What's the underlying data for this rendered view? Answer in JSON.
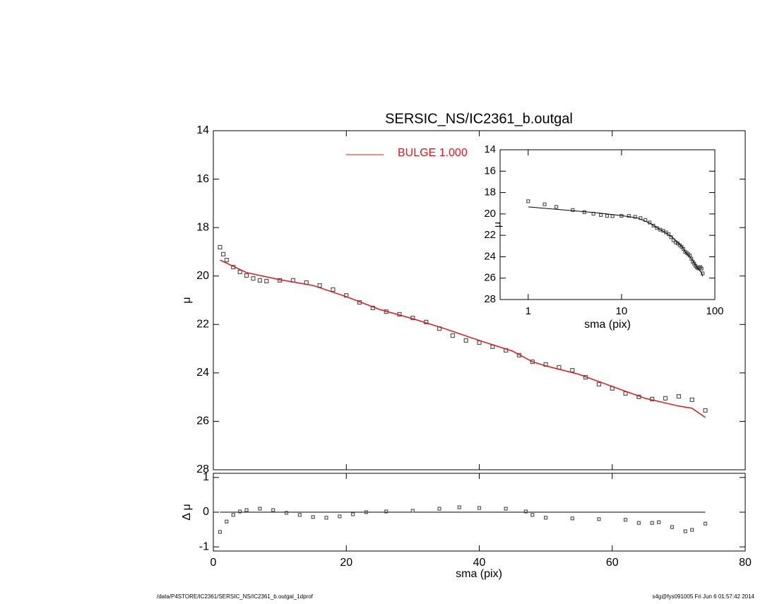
{
  "footer": {
    "left": "/data/P4STORE/IC2361/SERSIC_NS/IC2361_b.outgal_1dprof",
    "right": "s4g@fys091005  Fri Jun  6 01:57:42 2014"
  },
  "chart_data": [
    {
      "type": "scatter",
      "title": "SERSIC_NS/IC2361_b.outgal",
      "ylabel": "μ",
      "xlim": [
        0,
        80
      ],
      "ylim": [
        28,
        14
      ],
      "xticks": [
        0,
        20,
        40,
        60,
        80
      ],
      "yticks": [
        14,
        16,
        18,
        20,
        22,
        24,
        26,
        28
      ],
      "legend": "top",
      "series": [
        {
          "type": "scatter",
          "color": "#555555",
          "x": [
            1,
            1.5,
            2,
            3,
            4,
            5,
            6,
            7,
            8,
            10,
            12,
            14,
            16,
            18,
            20,
            22,
            24,
            26,
            28,
            30,
            32,
            34,
            36,
            38,
            40,
            42,
            44,
            46,
            48,
            50,
            52,
            54,
            56,
            58,
            60,
            62,
            64,
            66,
            68,
            70,
            72,
            74
          ],
          "values": [
            18.81,
            19.1,
            19.34,
            19.63,
            19.83,
            19.98,
            20.1,
            20.18,
            20.21,
            20.18,
            20.18,
            20.27,
            20.39,
            20.56,
            20.8,
            21.09,
            21.32,
            21.47,
            21.58,
            21.73,
            21.9,
            22.17,
            22.46,
            22.66,
            22.75,
            22.92,
            23.07,
            23.27,
            23.54,
            23.65,
            23.77,
            23.89,
            24.18,
            24.47,
            24.64,
            24.85,
            24.99,
            25.08,
            25.05,
            24.97,
            25.11,
            25.55
          ]
        },
        {
          "type": "line",
          "name": "BULGE  1.000",
          "color": "#e8141a",
          "x": [
            1,
            5,
            10,
            15,
            20,
            25,
            30,
            35,
            40,
            45,
            48,
            50,
            55,
            60,
            65,
            70,
            72,
            74
          ],
          "values": [
            19.34,
            19.86,
            20.15,
            20.39,
            20.85,
            21.38,
            21.76,
            22.19,
            22.66,
            23.1,
            23.54,
            23.71,
            24.06,
            24.56,
            25.05,
            25.37,
            25.46,
            25.84
          ]
        }
      ]
    },
    {
      "type": "scatter",
      "xlabel": "sma (pix)",
      "ylabel": "Δ μ",
      "xlim": [
        0,
        80
      ],
      "ylim": [
        -1.12,
        1.12
      ],
      "xticks": [
        0,
        20,
        40,
        60,
        80
      ],
      "yticks": [
        -1,
        0,
        1
      ],
      "hline": 0,
      "color": "#555555",
      "x": [
        1,
        2,
        3,
        4,
        5,
        7,
        9,
        11,
        13,
        15,
        17,
        19,
        21,
        23,
        26,
        30,
        34,
        37,
        40,
        44,
        47,
        48,
        50,
        54,
        58,
        62,
        64,
        66,
        67,
        69,
        71,
        72,
        74
      ],
      "values": [
        -0.57,
        -0.27,
        -0.08,
        0.02,
        0.06,
        0.1,
        0.06,
        -0.02,
        -0.08,
        -0.14,
        -0.16,
        -0.12,
        -0.06,
        0,
        0.02,
        0.04,
        0.1,
        0.14,
        0.12,
        0.1,
        0.02,
        -0.08,
        -0.16,
        -0.18,
        -0.2,
        -0.22,
        -0.31,
        -0.31,
        -0.29,
        -0.43,
        -0.55,
        -0.51,
        -0.33
      ]
    },
    {
      "type": "scatter",
      "xlog": true,
      "xlabel": "sma (pix)",
      "ylabel": "μ",
      "model_color": "#000000",
      "xlim": [
        0.5,
        100
      ],
      "ylim": [
        28,
        14
      ],
      "xticks": [
        1,
        10,
        100
      ],
      "yticks": [
        14,
        16,
        18,
        20,
        22,
        24,
        26,
        28
      ]
    }
  ]
}
